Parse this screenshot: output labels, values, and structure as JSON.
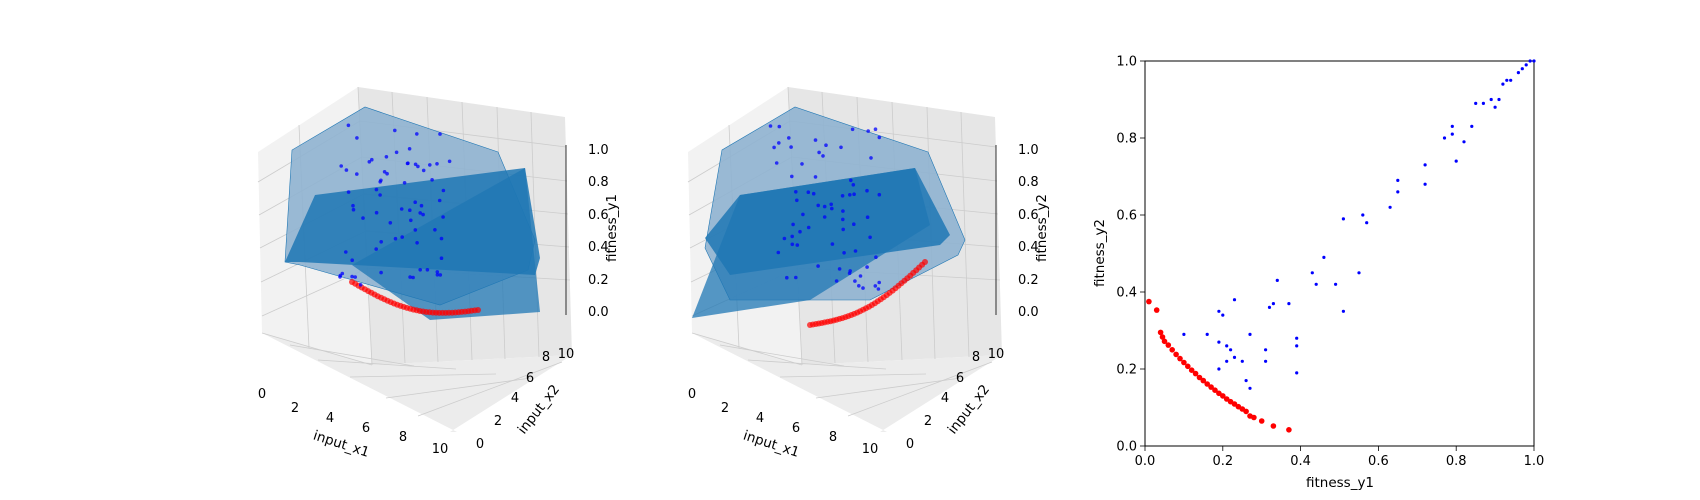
{
  "colors": {
    "surface": "#1f77b4",
    "surface_light": "#8fb3d0",
    "pane_left": "#f2f2f2",
    "pane_right": "#e6e6e6",
    "pane_floor": "#ececec",
    "grid": "#cccccc",
    "point_blue": "#0000ff",
    "point_red": "#ff0000"
  },
  "chart_data": [
    {
      "type": "scatter",
      "subtype": "3d-surface",
      "xlabel": "input_x1",
      "ylabel": "input_x2",
      "zlabel": "fitness_y1",
      "xticks": [
        "0",
        "2",
        "4",
        "6",
        "8",
        "10"
      ],
      "yticks": [
        "0",
        "2",
        "4",
        "6",
        "8",
        "10"
      ],
      "zticks": [
        "0.0",
        "0.2",
        "0.4",
        "0.6",
        "0.8",
        "1.0"
      ],
      "xlim": [
        0,
        10
      ],
      "ylim": [
        0,
        10
      ],
      "zlim": [
        0,
        1
      ],
      "surface": "fitness_y1 over input_x1 x input_x2 (plateau near 1.0 with a drop to 0 along one edge)",
      "series": [
        {
          "color": "blue",
          "points": "population (scattered)"
        },
        {
          "color": "red",
          "points": "pareto front (on floor near z=0)"
        }
      ],
      "grid": true
    },
    {
      "type": "scatter",
      "subtype": "3d-surface",
      "xlabel": "input_x1",
      "ylabel": "input_x2",
      "zlabel": "fitness_y2",
      "xticks": [
        "0",
        "2",
        "4",
        "6",
        "8",
        "10"
      ],
      "yticks": [
        "0",
        "2",
        "4",
        "6",
        "8",
        "10"
      ],
      "zticks": [
        "0.0",
        "0.2",
        "0.4",
        "0.6",
        "0.8",
        "1.0"
      ],
      "xlim": [
        0,
        10
      ],
      "ylim": [
        0,
        10
      ],
      "zlim": [
        0,
        1
      ],
      "grid": true
    },
    {
      "type": "scatter",
      "xlabel": "fitness_y1",
      "ylabel": "fitness_y2",
      "xlim": [
        0,
        1
      ],
      "ylim": [
        0,
        1
      ],
      "xticks": [
        "0.0",
        "0.2",
        "0.4",
        "0.6",
        "0.8",
        "1.0"
      ],
      "yticks": [
        "0.0",
        "0.2",
        "0.4",
        "0.6",
        "0.8",
        "1.0"
      ],
      "grid": false,
      "series": [
        {
          "color": "#0000ff",
          "points": [
            [
              0.1,
              0.29
            ],
            [
              0.16,
              0.29
            ],
            [
              0.19,
              0.35
            ],
            [
              0.2,
              0.34
            ],
            [
              0.23,
              0.38
            ],
            [
              0.19,
              0.27
            ],
            [
              0.21,
              0.26
            ],
            [
              0.22,
              0.25
            ],
            [
              0.21,
              0.22
            ],
            [
              0.19,
              0.2
            ],
            [
              0.23,
              0.23
            ],
            [
              0.25,
              0.22
            ],
            [
              0.26,
              0.17
            ],
            [
              0.27,
              0.15
            ],
            [
              0.27,
              0.29
            ],
            [
              0.31,
              0.25
            ],
            [
              0.31,
              0.22
            ],
            [
              0.32,
              0.36
            ],
            [
              0.33,
              0.37
            ],
            [
              0.34,
              0.43
            ],
            [
              0.37,
              0.37
            ],
            [
              0.39,
              0.28
            ],
            [
              0.39,
              0.26
            ],
            [
              0.39,
              0.19
            ],
            [
              0.43,
              0.45
            ],
            [
              0.44,
              0.42
            ],
            [
              0.46,
              0.49
            ],
            [
              0.49,
              0.42
            ],
            [
              0.51,
              0.35
            ],
            [
              0.51,
              0.59
            ],
            [
              0.55,
              0.45
            ],
            [
              0.56,
              0.6
            ],
            [
              0.57,
              0.58
            ],
            [
              0.63,
              0.62
            ],
            [
              0.65,
              0.66
            ],
            [
              0.65,
              0.69
            ],
            [
              0.72,
              0.73
            ],
            [
              0.72,
              0.68
            ],
            [
              0.77,
              0.8
            ],
            [
              0.79,
              0.81
            ],
            [
              0.79,
              0.83
            ],
            [
              0.8,
              0.74
            ],
            [
              0.82,
              0.79
            ],
            [
              0.84,
              0.83
            ],
            [
              0.85,
              0.89
            ],
            [
              0.87,
              0.89
            ],
            [
              0.89,
              0.9
            ],
            [
              0.9,
              0.88
            ],
            [
              0.91,
              0.9
            ],
            [
              0.92,
              0.94
            ],
            [
              0.93,
              0.95
            ],
            [
              0.94,
              0.95
            ],
            [
              0.96,
              0.97
            ],
            [
              0.97,
              0.98
            ],
            [
              0.98,
              0.99
            ],
            [
              0.99,
              1.0
            ],
            [
              1.0,
              1.0
            ]
          ]
        },
        {
          "color": "#ff0000",
          "points": [
            [
              0.01,
              0.375
            ],
            [
              0.03,
              0.353
            ],
            [
              0.04,
              0.295
            ],
            [
              0.045,
              0.283
            ],
            [
              0.05,
              0.272
            ],
            [
              0.06,
              0.262
            ],
            [
              0.07,
              0.25
            ],
            [
              0.08,
              0.238
            ],
            [
              0.09,
              0.227
            ],
            [
              0.1,
              0.217
            ],
            [
              0.11,
              0.207
            ],
            [
              0.12,
              0.197
            ],
            [
              0.13,
              0.188
            ],
            [
              0.14,
              0.178
            ],
            [
              0.15,
              0.17
            ],
            [
              0.16,
              0.161
            ],
            [
              0.17,
              0.153
            ],
            [
              0.18,
              0.145
            ],
            [
              0.19,
              0.137
            ],
            [
              0.2,
              0.13
            ],
            [
              0.21,
              0.122
            ],
            [
              0.22,
              0.115
            ],
            [
              0.23,
              0.109
            ],
            [
              0.24,
              0.102
            ],
            [
              0.25,
              0.096
            ],
            [
              0.26,
              0.09
            ],
            [
              0.27,
              0.078
            ],
            [
              0.28,
              0.074
            ],
            [
              0.3,
              0.065
            ],
            [
              0.33,
              0.052
            ],
            [
              0.37,
              0.042
            ]
          ]
        }
      ]
    }
  ]
}
